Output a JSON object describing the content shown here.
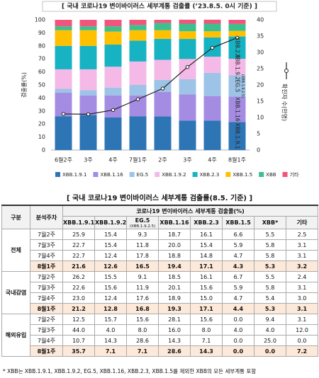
{
  "chart_data": {
    "type": "bar",
    "stacked": true,
    "title": "[ 국내 코로나19 변이바이러스 세부계통 검출률 (’23.8.5. 0시 기준) ]",
    "ylabel": "검출률(%)",
    "categories": [
      "6월2주",
      "3주",
      "4주",
      "7월1주",
      "2주",
      "3주",
      "4주",
      "8월1주"
    ],
    "ylim": [
      0,
      100
    ],
    "yticks": [
      0,
      10,
      20,
      30,
      40,
      50,
      60,
      70,
      80,
      90,
      100
    ],
    "y2lim": [
      0,
      40
    ],
    "y2ticks": [
      0,
      5,
      10,
      15,
      20,
      25,
      30,
      35,
      40
    ],
    "grid": false,
    "series": [
      {
        "name": "XBB.1.9.1",
        "color": "#2e75b6",
        "values": [
          26,
          27,
          25,
          26,
          25.9,
          22.7,
          22.7,
          21.6
        ]
      },
      {
        "name": "XBB.1.16",
        "color": "#a48ce3",
        "values": [
          18,
          15,
          17,
          16,
          18.7,
          20.0,
          18.8,
          19.4
        ]
      },
      {
        "name": "EG.5",
        "color": "#9dc3e6",
        "values": [
          3,
          4,
          6,
          8,
          9.3,
          11.8,
          17.8,
          16.5
        ]
      },
      {
        "name": "XBB.1.9.2",
        "color": "#f4b9e6",
        "values": [
          15,
          16,
          16,
          18,
          15.4,
          15.4,
          12.4,
          12.6
        ]
      },
      {
        "name": "XBB.2.3",
        "color": "#17b3c3",
        "values": [
          18,
          18,
          17,
          16,
          16.1,
          15.4,
          14.8,
          17.1
        ]
      },
      {
        "name": "XBB.1.5",
        "color": "#ffc000",
        "values": [
          12,
          12,
          10,
          8,
          6.6,
          5.9,
          4.7,
          4.3
        ]
      },
      {
        "name": "XBB",
        "color": "#3dbf8e",
        "values": [
          3,
          3,
          4,
          4,
          5.5,
          5.8,
          5.8,
          5.3
        ]
      },
      {
        "name": "기타",
        "color": "#f0567c",
        "values": [
          5,
          5,
          5,
          4,
          2.5,
          3.1,
          3.1,
          3.2
        ]
      },
      {
        "name": "확진자 수(만명)",
        "type": "line",
        "axis": "y2",
        "color": "#222222",
        "values": [
          11.1,
          11.0,
          12.3,
          15.6,
          18.9,
          25.5,
          31.4,
          34.5
        ]
      }
    ],
    "annotations": [
      "XBB.1.9.1",
      "XBB.1.16",
      "EG.5",
      "(XBB.1.9.2.5)",
      "XBB.2.3",
      "XBB.1.9.2"
    ]
  },
  "table": {
    "title": "[ 국내 코로나19 변이바이러스 세부계통 검출률(8.5. 기준) ]",
    "header": {
      "group": "구분",
      "week": "분석주차",
      "span": "코로나19 변이바이러스 세부계통 검출률(%)"
    },
    "columns": [
      "XBB.1.9.1",
      "XBB.1.9.2",
      {
        "name": "EG.5",
        "note": "(XBB.1.9.2.5)"
      },
      "XBB.1.16",
      "XBB.2.3",
      "XBB.1.5",
      "XBB*",
      "기타"
    ],
    "groups": [
      {
        "name": "전체",
        "rows": [
          {
            "week": "7월2주",
            "values": [
              "25.9",
              "15.4",
              "9.3",
              "18.7",
              "16.1",
              "6.6",
              "5.5",
              "2.5"
            ]
          },
          {
            "week": "7월3주",
            "values": [
              "22.7",
              "15.4",
              "11.8",
              "20.0",
              "15.4",
              "5.9",
              "5.8",
              "3.1"
            ]
          },
          {
            "week": "7월4주",
            "values": [
              "22.7",
              "12.4",
              "17.8",
              "18.8",
              "14.8",
              "4.7",
              "5.8",
              "3.1"
            ]
          },
          {
            "week": "8월1주",
            "values": [
              "21.6",
              "12.6",
              "16.5",
              "19.4",
              "17.1",
              "4.3",
              "5.3",
              "3.2"
            ]
          }
        ]
      },
      {
        "name": "국내감염",
        "rows": [
          {
            "week": "7월2주",
            "values": [
              "26.2",
              "15.5",
              "9.1",
              "18.5",
              "16.1",
              "6.7",
              "5.5",
              "2.4"
            ]
          },
          {
            "week": "7월3주",
            "values": [
              "22.6",
              "15.6",
              "11.9",
              "20.1",
              "15.6",
              "5.9",
              "5.8",
              "3.1"
            ]
          },
          {
            "week": "7월4주",
            "values": [
              "23.0",
              "12.4",
              "17.6",
              "18.9",
              "15.0",
              "4.7",
              "5.4",
              "3.0"
            ]
          },
          {
            "week": "8월1주",
            "values": [
              "21.2",
              "12.8",
              "16.8",
              "19.3",
              "17.1",
              "4.4",
              "5.3",
              "3.1"
            ]
          }
        ]
      },
      {
        "name": "해외유입",
        "rows": [
          {
            "week": "7월2주",
            "values": [
              "12.5",
              "15.7",
              "15.6",
              "28.1",
              "15.6",
              "0.0",
              "9.4",
              "3.1"
            ]
          },
          {
            "week": "7월3주",
            "values": [
              "44.0",
              "4.0",
              "8.0",
              "16.0",
              "8.0",
              "4.0",
              "4.0",
              "12.0"
            ]
          },
          {
            "week": "7월4주",
            "values": [
              "10.7",
              "14.3",
              "28.6",
              "14.3",
              "7.1",
              "0.0",
              "25.0",
              "0.0"
            ]
          },
          {
            "week": "8월1주",
            "values": [
              "35.7",
              "7.1",
              "7.1",
              "28.6",
              "14.3",
              "0.0",
              "0.0",
              "7.2"
            ]
          }
        ]
      }
    ],
    "footnote": "* XBB는 XBB.1.9.1, XBB.1.9.2, EG.5, XBB.1.16, XBB.2.3, XBB.1.5를 제외한 XBB의 모든 세부계통 포함"
  }
}
